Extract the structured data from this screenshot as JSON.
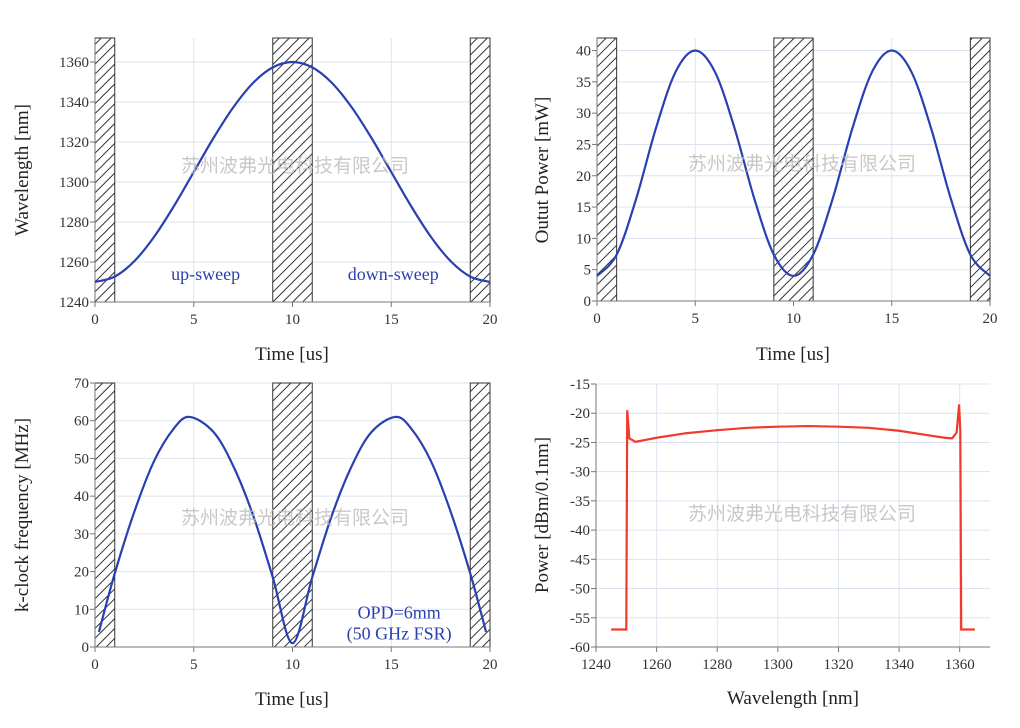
{
  "watermark": "苏州波弗光电科技有限公司",
  "chart_data": [
    {
      "type": "line",
      "xlabel": "Time [us]",
      "ylabel": "Wavelength [nm]",
      "xlim": [
        0,
        20
      ],
      "ylim": [
        1240,
        1372
      ],
      "xticks": [
        0,
        5,
        10,
        15,
        20
      ],
      "yticks": [
        1240,
        1260,
        1280,
        1300,
        1320,
        1340,
        1360
      ],
      "grid": true,
      "hatched_regions": [
        [
          0,
          1
        ],
        [
          9,
          11
        ],
        [
          19,
          20
        ]
      ],
      "color": "#2a3fb0",
      "x": [
        0,
        1,
        2,
        3,
        4,
        5,
        6,
        7,
        8,
        9,
        10,
        11,
        12,
        13,
        14,
        15,
        16,
        17,
        18,
        19,
        20
      ],
      "y": [
        1250,
        1252.7,
        1260.5,
        1272.7,
        1288,
        1305,
        1322,
        1337.3,
        1349.5,
        1357.3,
        1360,
        1357.3,
        1349.5,
        1337.3,
        1322,
        1305,
        1288,
        1272.7,
        1260.5,
        1252.7,
        1250
      ],
      "annotations": [
        {
          "text": "up-sweep",
          "x": 5.6,
          "y": 1251
        },
        {
          "text": "down-sweep",
          "x": 15.1,
          "y": 1251
        }
      ]
    },
    {
      "type": "line",
      "xlabel": "Time [us]",
      "ylabel": "Outut Power [mW]",
      "xlim": [
        0,
        20
      ],
      "ylim": [
        0,
        42
      ],
      "xticks": [
        0,
        5,
        10,
        15,
        20
      ],
      "yticks": [
        0,
        5,
        10,
        15,
        20,
        25,
        30,
        35,
        40
      ],
      "grid": true,
      "hatched_regions": [
        [
          0,
          1
        ],
        [
          9,
          11
        ],
        [
          19,
          20
        ]
      ],
      "color": "#2a3fb0",
      "x": [
        0,
        1,
        2,
        3,
        4,
        5,
        6,
        7,
        8,
        9,
        10,
        11,
        12,
        13,
        14,
        15,
        16,
        17,
        18,
        19,
        20
      ],
      "y": [
        4,
        7.4,
        16.4,
        27.6,
        36.6,
        40,
        36.6,
        27.6,
        16.4,
        7.4,
        4,
        7.4,
        16.4,
        27.6,
        36.6,
        40,
        36.6,
        27.6,
        16.4,
        7.4,
        4
      ],
      "annotations": []
    },
    {
      "type": "line",
      "xlabel": "Time [us]",
      "ylabel": "k-clock frequency [MHz]",
      "xlim": [
        0,
        20
      ],
      "ylim": [
        0,
        70
      ],
      "xticks": [
        0,
        5,
        10,
        15,
        20
      ],
      "yticks": [
        0,
        10,
        20,
        30,
        40,
        50,
        60,
        70
      ],
      "grid": true,
      "hatched_regions": [
        [
          0,
          1
        ],
        [
          9,
          11
        ],
        [
          19,
          20
        ]
      ],
      "color": "#2a3fb0",
      "x": [
        0.2,
        1,
        2,
        3,
        4,
        4.8,
        6,
        7,
        8,
        9,
        10,
        11,
        12,
        13,
        14,
        15.2,
        16,
        17,
        18,
        19,
        19.8
      ],
      "y": [
        4,
        19.5,
        36,
        49.4,
        58,
        61,
        57,
        48,
        35,
        18.5,
        1,
        18.5,
        35,
        48,
        57,
        61,
        58,
        49.4,
        36,
        19.5,
        4
      ],
      "annotations": [
        {
          "text": "OPD=6mm",
          "x": 15.4,
          "y": 7.5
        },
        {
          "text": "(50 GHz FSR)",
          "x": 15.4,
          "y": 2
        }
      ]
    },
    {
      "type": "line",
      "xlabel": "Wavelength [nm]",
      "ylabel": "Power [dBm/0.1nm]",
      "xlim": [
        1240,
        1370
      ],
      "ylim": [
        -60,
        -15
      ],
      "xticks": [
        1240,
        1260,
        1280,
        1300,
        1320,
        1340,
        1360
      ],
      "yticks": [
        -60,
        -55,
        -50,
        -45,
        -40,
        -35,
        -30,
        -25,
        -20,
        -15
      ],
      "grid": true,
      "hatched_regions": [],
      "color": "#f03a2a",
      "x": [
        1245,
        1250,
        1250.3,
        1251,
        1253,
        1260,
        1270,
        1280,
        1290,
        1300,
        1310,
        1320,
        1330,
        1340,
        1350,
        1355,
        1357.5,
        1359,
        1359.8,
        1360.2,
        1360.5,
        1365
      ],
      "y": [
        -57,
        -57,
        -19.5,
        -24.3,
        -24.9,
        -24.2,
        -23.4,
        -22.9,
        -22.5,
        -22.3,
        -22.2,
        -22.3,
        -22.5,
        -23,
        -23.8,
        -24.2,
        -24.3,
        -23.3,
        -18.5,
        -23,
        -57,
        -57
      ],
      "annotations": []
    }
  ]
}
